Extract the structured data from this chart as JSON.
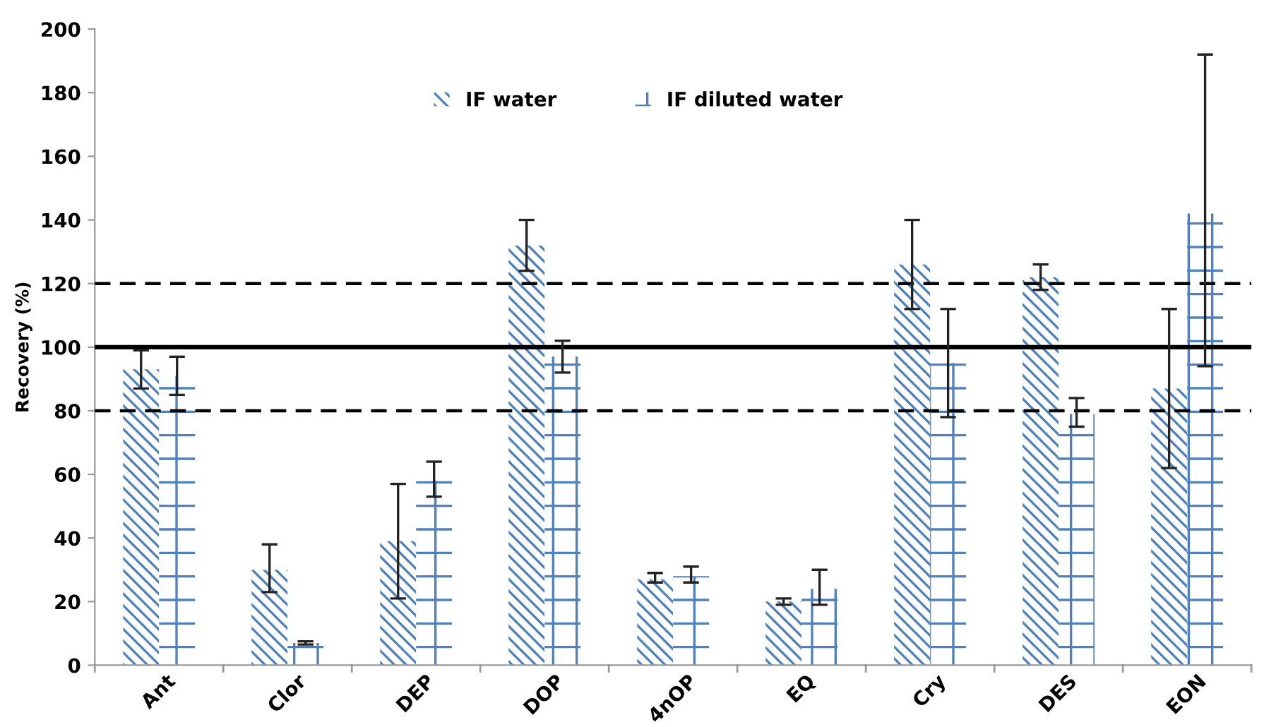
{
  "chart_data": {
    "type": "bar",
    "ylabel": "Recovery (%)",
    "categories": [
      "Ant",
      "Clor",
      "DEP",
      "DOP",
      "4nOP",
      "EQ",
      "Cry",
      "DES",
      "EON"
    ],
    "series": [
      {
        "name": "IF water",
        "color": "#4f81bd",
        "values": [
          93,
          30,
          39,
          132,
          27,
          20,
          126,
          122,
          87
        ],
        "errors": [
          [
            87,
            99
          ],
          [
            23,
            38
          ],
          [
            21,
            57
          ],
          [
            124,
            140
          ],
          [
            26,
            29
          ],
          [
            19,
            21
          ],
          [
            112,
            140
          ],
          [
            118,
            126
          ],
          [
            62,
            112
          ]
        ]
      },
      {
        "name": "IF diluted water",
        "color": "#4f81bd",
        "values": [
          91,
          7,
          58,
          97,
          28,
          24,
          95,
          79,
          142
        ],
        "errors": [
          [
            85,
            97
          ],
          [
            6.5,
            7.5
          ],
          [
            53,
            64
          ],
          [
            92,
            102
          ],
          [
            26,
            31
          ],
          [
            19,
            30
          ],
          [
            78,
            112
          ],
          [
            75,
            84
          ],
          [
            94,
            192
          ]
        ]
      }
    ],
    "ylim": [
      0,
      200
    ],
    "yticks": [
      0,
      20,
      40,
      60,
      80,
      100,
      120,
      140,
      160,
      180,
      200
    ],
    "ref_lines": [
      {
        "axis": "y",
        "value": 100,
        "line_style": "solid",
        "color": "#000000"
      },
      {
        "axis": "y",
        "value": 120,
        "line_style": "dashed",
        "color": "#000000"
      },
      {
        "axis": "y",
        "value": 80,
        "line_style": "dashed",
        "color": "#000000"
      }
    ],
    "legend": "top",
    "grid": false
  }
}
